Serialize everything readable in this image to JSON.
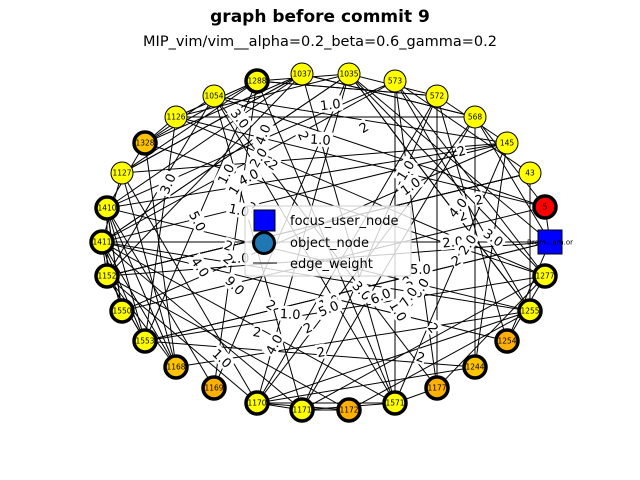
{
  "title": "graph before commit 9",
  "subtitle": "MIP_vim/vim__alpha=0.2_beta=0.6_gamma=0.2",
  "colors": {
    "node_yellow": "#ffff00",
    "node_amber": "#ffc400",
    "node_orange": "#ffb000",
    "focus_red": "#ff0000",
    "focus_blue": "#0000ff",
    "object_legend": "#1f77b4",
    "edge": "#000000"
  },
  "legend": {
    "focus_user_node": "focus_user_node",
    "object_node": "object_node",
    "edge_weight": "edge_weight"
  },
  "nodes": [
    {
      "label": "1288",
      "style": "bold-yellow"
    },
    {
      "label": "1037",
      "style": "thin-yellow"
    },
    {
      "label": "1035",
      "style": "thin-yellow"
    },
    {
      "label": "573",
      "style": "thin-yellow"
    },
    {
      "label": "572",
      "style": "thin-yellow"
    },
    {
      "label": "568",
      "style": "thin-yellow"
    },
    {
      "label": "145",
      "style": "thin-yellow"
    },
    {
      "label": "43",
      "style": "thin-yellow"
    },
    {
      "label": "1054",
      "style": "thin-yellow"
    },
    {
      "label": "1126",
      "style": "thin-yellow"
    },
    {
      "label": "1328",
      "style": "bold-amber"
    },
    {
      "label": "1127",
      "style": "thin-yellow"
    },
    {
      "label": "1410",
      "style": "bold-yellow"
    },
    {
      "label": "1411",
      "style": "bold-yellow"
    },
    {
      "label": "1152",
      "style": "bold-yellow"
    },
    {
      "label": "1550",
      "style": "bold-yellow"
    },
    {
      "label": "1553",
      "style": "bold-yellow"
    },
    {
      "label": "1168",
      "style": "bold-amber"
    },
    {
      "label": "1169",
      "style": "bold-orange"
    },
    {
      "label": "1170",
      "style": "bold-yellow"
    },
    {
      "label": "1171",
      "style": "bold-yellow"
    },
    {
      "label": "1172",
      "style": "bold-orange"
    },
    {
      "label": "1571",
      "style": "bold-yellow"
    },
    {
      "label": "1177",
      "style": "bold-orange"
    },
    {
      "label": "1244",
      "style": "bold-amber"
    },
    {
      "label": "1254",
      "style": "bold-orange"
    },
    {
      "label": "1255",
      "style": "bold-yellow"
    },
    {
      "label": "1277",
      "style": "bold-yellow"
    },
    {
      "label": "5",
      "style": "focus-red"
    },
    {
      "label": "Bram@Moolenaar.net",
      "style": "focus-blue",
      "display": "Bram...am.or"
    }
  ],
  "edge_labels": [
    "2",
    "2",
    "2",
    "2",
    "2",
    "2",
    "2",
    "2",
    "2",
    "2",
    "2",
    "2",
    "2",
    "2",
    "2",
    "1.0",
    "1.0",
    "1.0",
    "1.0",
    "1.0",
    "1.0",
    "1.0",
    "1.0",
    "1.0",
    "1.0",
    "1.0",
    "1.0",
    "2.0",
    "2.0",
    "2.0",
    "2.0",
    "3.0",
    "3.0",
    "3.0",
    "3.0",
    "4.0",
    "4.0",
    "4.0",
    "4.0",
    "5.0",
    "5.0",
    "5.0",
    "6.0",
    "6.0",
    "7.0",
    "9.0",
    "4.0",
    "2",
    "2",
    "2"
  ]
}
